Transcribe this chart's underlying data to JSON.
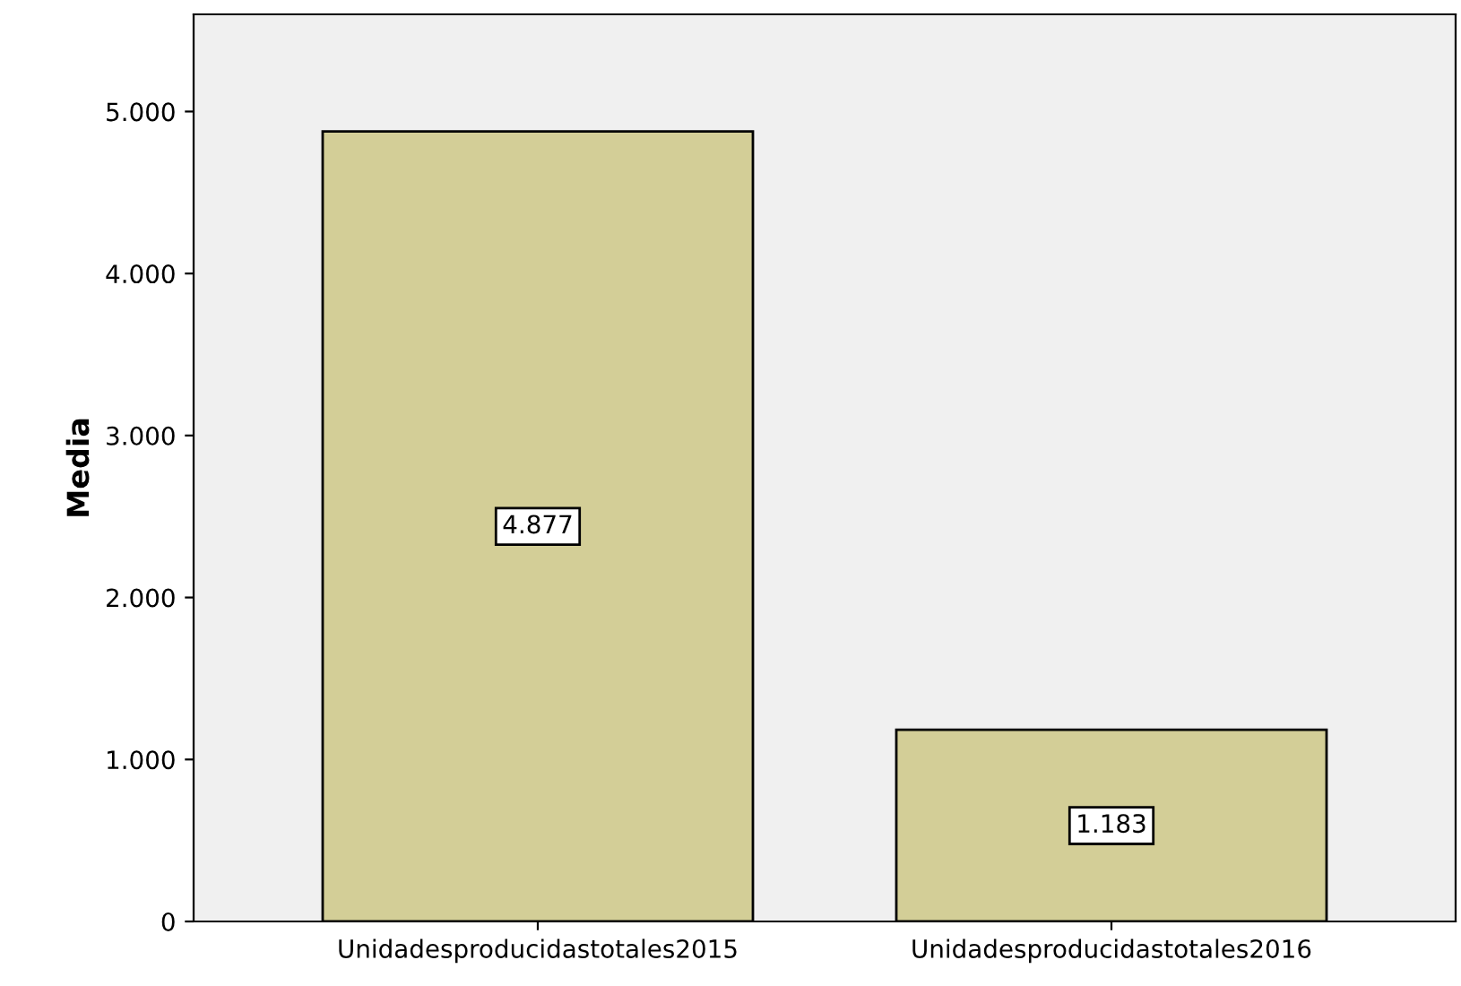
{
  "chart_data": {
    "type": "bar",
    "ylabel": "Media",
    "categories": [
      "Unidadesproducidastotales2015",
      "Unidadesproducidastotales2016"
    ],
    "values": [
      4877,
      1183
    ],
    "color": "#d3ce97",
    "value_labels": [
      "4.877",
      "1.183"
    ],
    "ylim": [
      0,
      5600
    ],
    "yticks": [
      {
        "value": 0,
        "label": "0"
      },
      {
        "value": 1000,
        "label": "1.000"
      },
      {
        "value": 2000,
        "label": "2.000"
      },
      {
        "value": 3000,
        "label": "3.000"
      },
      {
        "value": 4000,
        "label": "4.000"
      },
      {
        "value": 5000,
        "label": "5.000"
      }
    ],
    "grid": false,
    "legend": false
  }
}
